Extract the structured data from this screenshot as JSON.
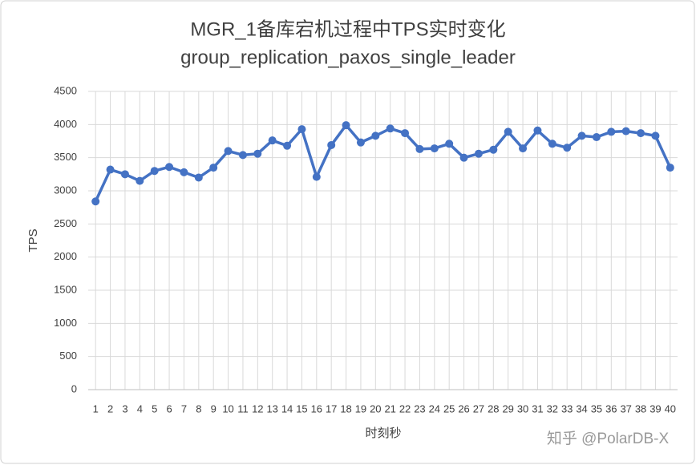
{
  "chart_data": {
    "type": "line",
    "title": "MGR_1备库宕机过程中TPS实时变化",
    "subtitle": "group_replication_paxos_single_leader",
    "x_label": "时刻秒",
    "y_label": "TPS",
    "watermark": "知乎 @PolarDB-X",
    "categories": [
      "1",
      "2",
      "3",
      "4",
      "5",
      "6",
      "7",
      "8",
      "9",
      "10",
      "11",
      "12",
      "13",
      "14",
      "15",
      "16",
      "17",
      "18",
      "19",
      "20",
      "21",
      "22",
      "23",
      "24",
      "25",
      "26",
      "27",
      "28",
      "29",
      "30",
      "31",
      "32",
      "33",
      "34",
      "35",
      "36",
      "37",
      "38",
      "39",
      "40"
    ],
    "series": [
      {
        "name": "TPS",
        "color": "#4472c4",
        "values": [
          2840,
          3320,
          3250,
          3150,
          3300,
          3360,
          3280,
          3200,
          3350,
          3600,
          3540,
          3560,
          3760,
          3680,
          3930,
          3210,
          3690,
          3990,
          3730,
          3830,
          3940,
          3870,
          3630,
          3640,
          3710,
          3500,
          3560,
          3620,
          3890,
          3640,
          3910,
          3710,
          3650,
          3830,
          3810,
          3890,
          3900,
          3870,
          3830,
          3350
        ]
      }
    ],
    "ylim": [
      0,
      4500
    ],
    "yticks": [
      0,
      500,
      1000,
      1500,
      2000,
      2500,
      3000,
      3500,
      4000,
      4500
    ],
    "grid": true
  }
}
